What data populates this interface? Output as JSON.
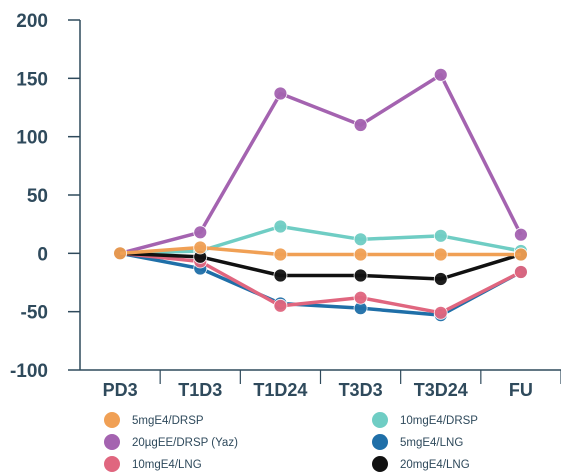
{
  "chart_data": {
    "type": "line",
    "categories": [
      "PD3",
      "T1D3",
      "T1D24",
      "T3D3",
      "T3D24",
      "FU"
    ],
    "ylim": [
      -100,
      200
    ],
    "yticks": [
      "200",
      "150",
      "100",
      "50",
      "0",
      "-50",
      "-100"
    ],
    "grid": false,
    "legend_position": "bottom",
    "series": [
      {
        "name": "5mgE4/DRSP",
        "color": "#f0a055",
        "values": [
          0,
          5,
          -1,
          -1,
          -1,
          -1
        ]
      },
      {
        "name": "10mgE4/DRSP",
        "color": "#6fcdc4",
        "values": [
          0,
          2,
          23,
          12,
          15,
          2
        ]
      },
      {
        "name": "20µgEE/DRSP (Yaz)",
        "color": "#a463b0",
        "values": [
          0,
          18,
          137,
          110,
          153,
          16
        ]
      },
      {
        "name": "5mgE4/LNG",
        "color": "#1f6fa8",
        "values": [
          0,
          -13,
          -43,
          -47,
          -53,
          -16
        ]
      },
      {
        "name": "10mgE4/LNG",
        "color": "#e0667f",
        "values": [
          0,
          -7,
          -45,
          -38,
          -51,
          -16
        ]
      },
      {
        "name": "20mgE4/LNG",
        "color": "#111111",
        "values": [
          0,
          -3,
          -19,
          -19,
          -22,
          -1
        ]
      }
    ]
  }
}
